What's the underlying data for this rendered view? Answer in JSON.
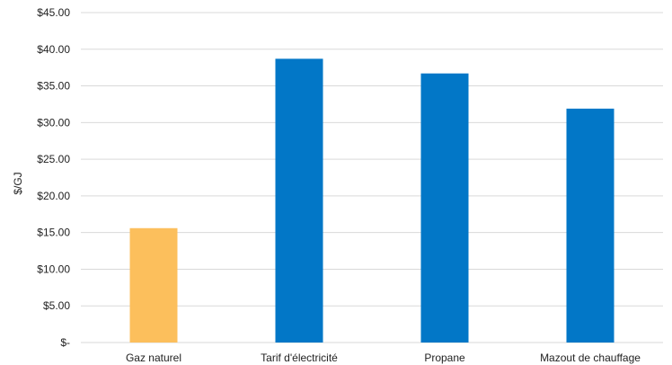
{
  "chart_data": {
    "type": "bar",
    "title": "",
    "xlabel": "",
    "ylabel": "$/GJ",
    "categories": [
      "Gaz naturel",
      "Tarif d'électricité",
      "Propane",
      "Mazout de chauffage"
    ],
    "values": [
      15.6,
      38.7,
      36.7,
      31.9
    ],
    "colors": [
      "#fcbf5c",
      "#0277c7",
      "#0277c7",
      "#0277c7"
    ],
    "ylim": [
      0,
      45
    ],
    "yticks": [
      {
        "value": 0,
        "label": "$-"
      },
      {
        "value": 5,
        "label": "$5.00"
      },
      {
        "value": 10,
        "label": "$10.00"
      },
      {
        "value": 15,
        "label": "$15.00"
      },
      {
        "value": 20,
        "label": "$20.00"
      },
      {
        "value": 25,
        "label": "$25.00"
      },
      {
        "value": 30,
        "label": "$30.00"
      },
      {
        "value": 35,
        "label": "$35.00"
      },
      {
        "value": 40,
        "label": "$40.00"
      },
      {
        "value": 45,
        "label": "$45.00"
      }
    ],
    "grid": true,
    "legend": "none"
  }
}
